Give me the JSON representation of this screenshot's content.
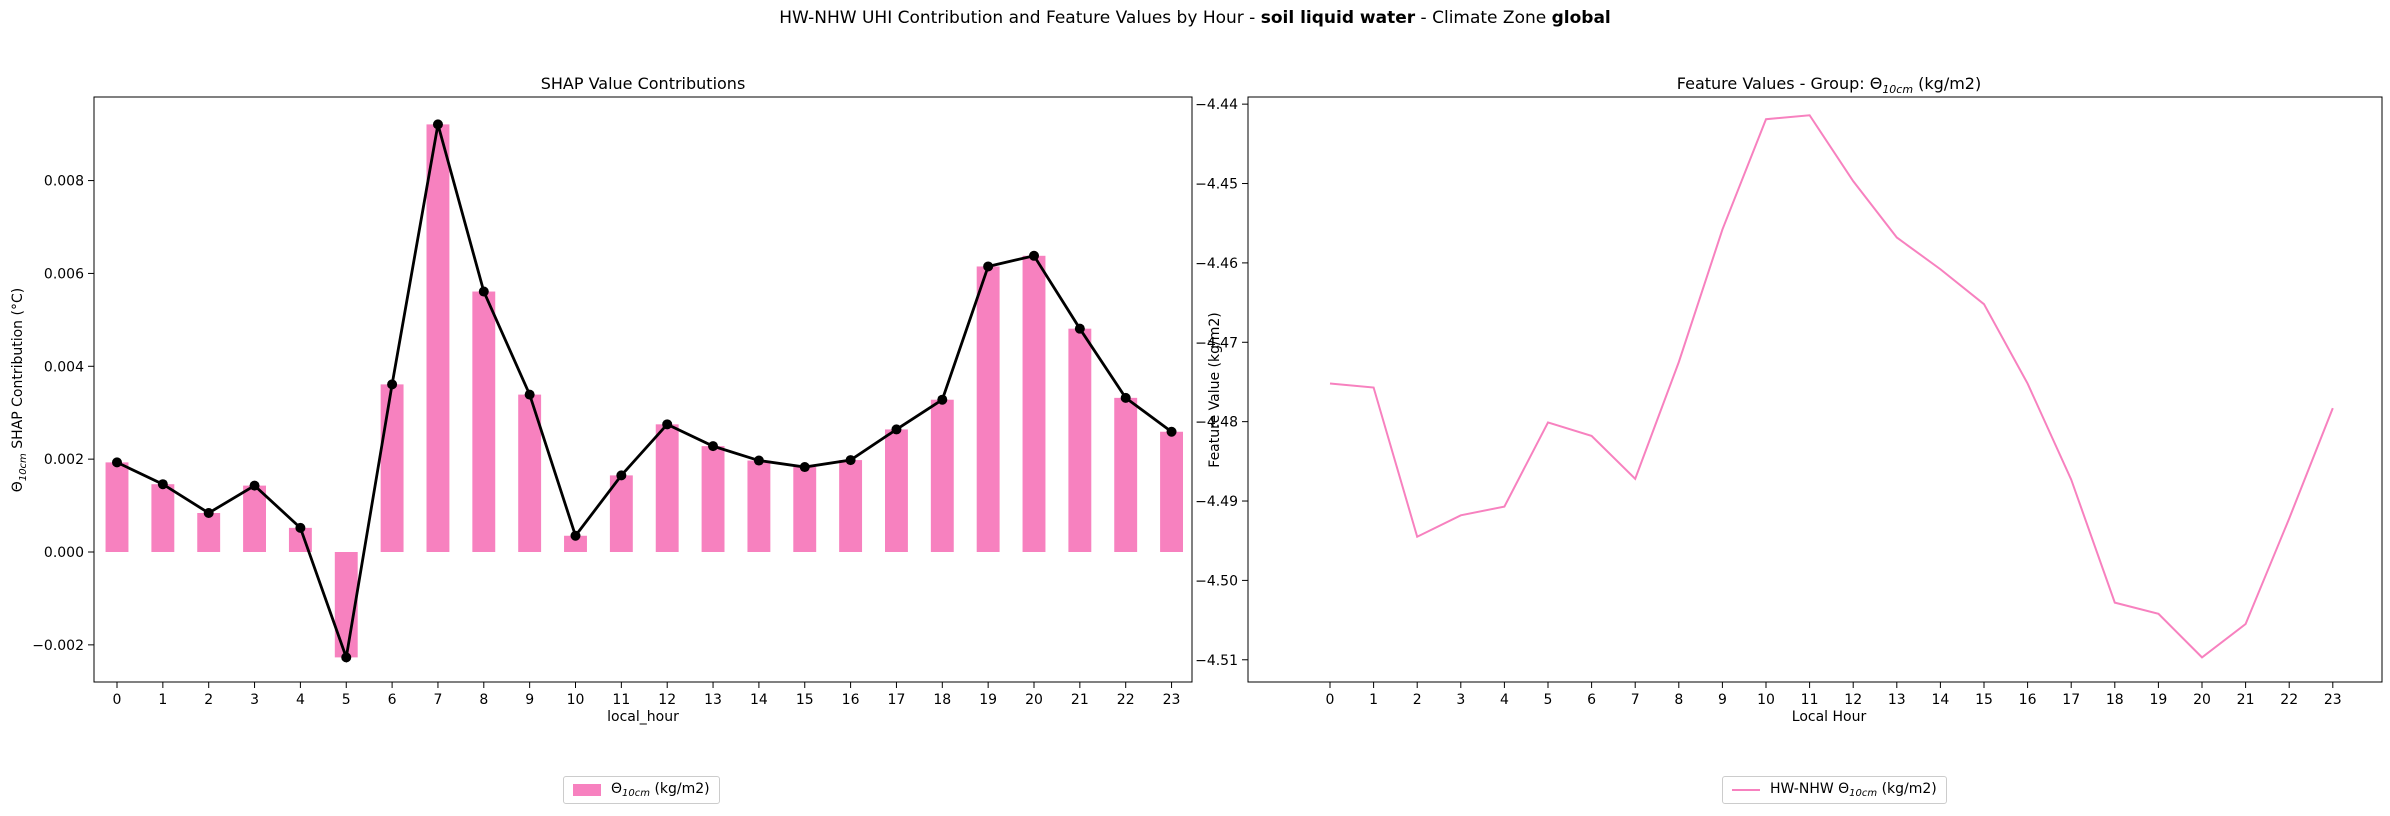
{
  "figure": {
    "suptitle_prefix": "HW-NHW UHI Contribution and Feature Values by Hour - ",
    "suptitle_feature": "soil liquid water",
    "suptitle_mid": " - Climate Zone ",
    "suptitle_zone": "global"
  },
  "colors": {
    "series": "#f781bf",
    "line": "#000000"
  },
  "chart_data": [
    {
      "type": "bar",
      "title": "SHAP Value Contributions",
      "xlabel": "local_hour",
      "ylabel_base": "Θ",
      "ylabel_sub": "10cm",
      "ylabel_rest": " SHAP Contribution (°C)",
      "categories": [
        "0",
        "1",
        "2",
        "3",
        "4",
        "5",
        "6",
        "7",
        "8",
        "9",
        "10",
        "11",
        "12",
        "13",
        "14",
        "15",
        "16",
        "17",
        "18",
        "19",
        "20",
        "21",
        "22",
        "23"
      ],
      "values": [
        0.00193,
        0.00146,
        0.00084,
        0.00143,
        0.00052,
        -0.00227,
        0.00361,
        0.00921,
        0.00561,
        0.00339,
        0.00035,
        0.00165,
        0.00275,
        0.00228,
        0.00197,
        0.00183,
        0.00198,
        0.00264,
        0.00328,
        0.00615,
        0.00638,
        0.00481,
        0.00332,
        0.00259
      ],
      "overlay_line": "black line with markers through bar tops",
      "ylim": [
        -0.0028,
        0.0098
      ],
      "yticks": [
        -0.002,
        0.0,
        0.002,
        0.004,
        0.006,
        0.008
      ],
      "ytick_labels": [
        "−0.002",
        "0.000",
        "0.002",
        "0.004",
        "0.006",
        "0.008"
      ],
      "legend": {
        "base": "Θ",
        "sub": "10cm",
        "rest": " (kg/m2)",
        "placement": "below-center"
      }
    },
    {
      "type": "line",
      "title_prefix": "Feature Values - Group: Θ",
      "title_sub": "10cm",
      "title_rest": " (kg/m2)",
      "xlabel": "Local Hour",
      "ylabel": "Feature Value (kg/m2)",
      "x": [
        0,
        1,
        2,
        3,
        4,
        5,
        6,
        7,
        8,
        9,
        10,
        11,
        12,
        13,
        14,
        15,
        16,
        17,
        18,
        19,
        20,
        21,
        22,
        23
      ],
      "y": [
        -4.4752,
        -4.4757,
        -4.4945,
        -4.4918,
        -4.4907,
        -4.4801,
        -4.4818,
        -4.4872,
        -4.4725,
        -4.4558,
        -4.4419,
        -4.4414,
        -4.4497,
        -4.4568,
        -4.4608,
        -4.4652,
        -4.4752,
        -4.4873,
        -4.5028,
        -4.5042,
        -4.5097,
        -4.5055,
        -4.4922,
        -4.4783
      ],
      "ylim": [
        -4.5128,
        -4.4391
      ],
      "yticks": [
        -4.51,
        -4.5,
        -4.49,
        -4.48,
        -4.47,
        -4.46,
        -4.45,
        -4.44
      ],
      "ytick_labels": [
        "−4.51",
        "−4.50",
        "−4.49",
        "−4.48",
        "−4.47",
        "−4.46",
        "−4.45",
        "−4.44"
      ],
      "legend": {
        "prefix": "HW-NHW Θ",
        "sub": "10cm",
        "rest": " (kg/m2)",
        "placement": "below-center"
      }
    }
  ]
}
